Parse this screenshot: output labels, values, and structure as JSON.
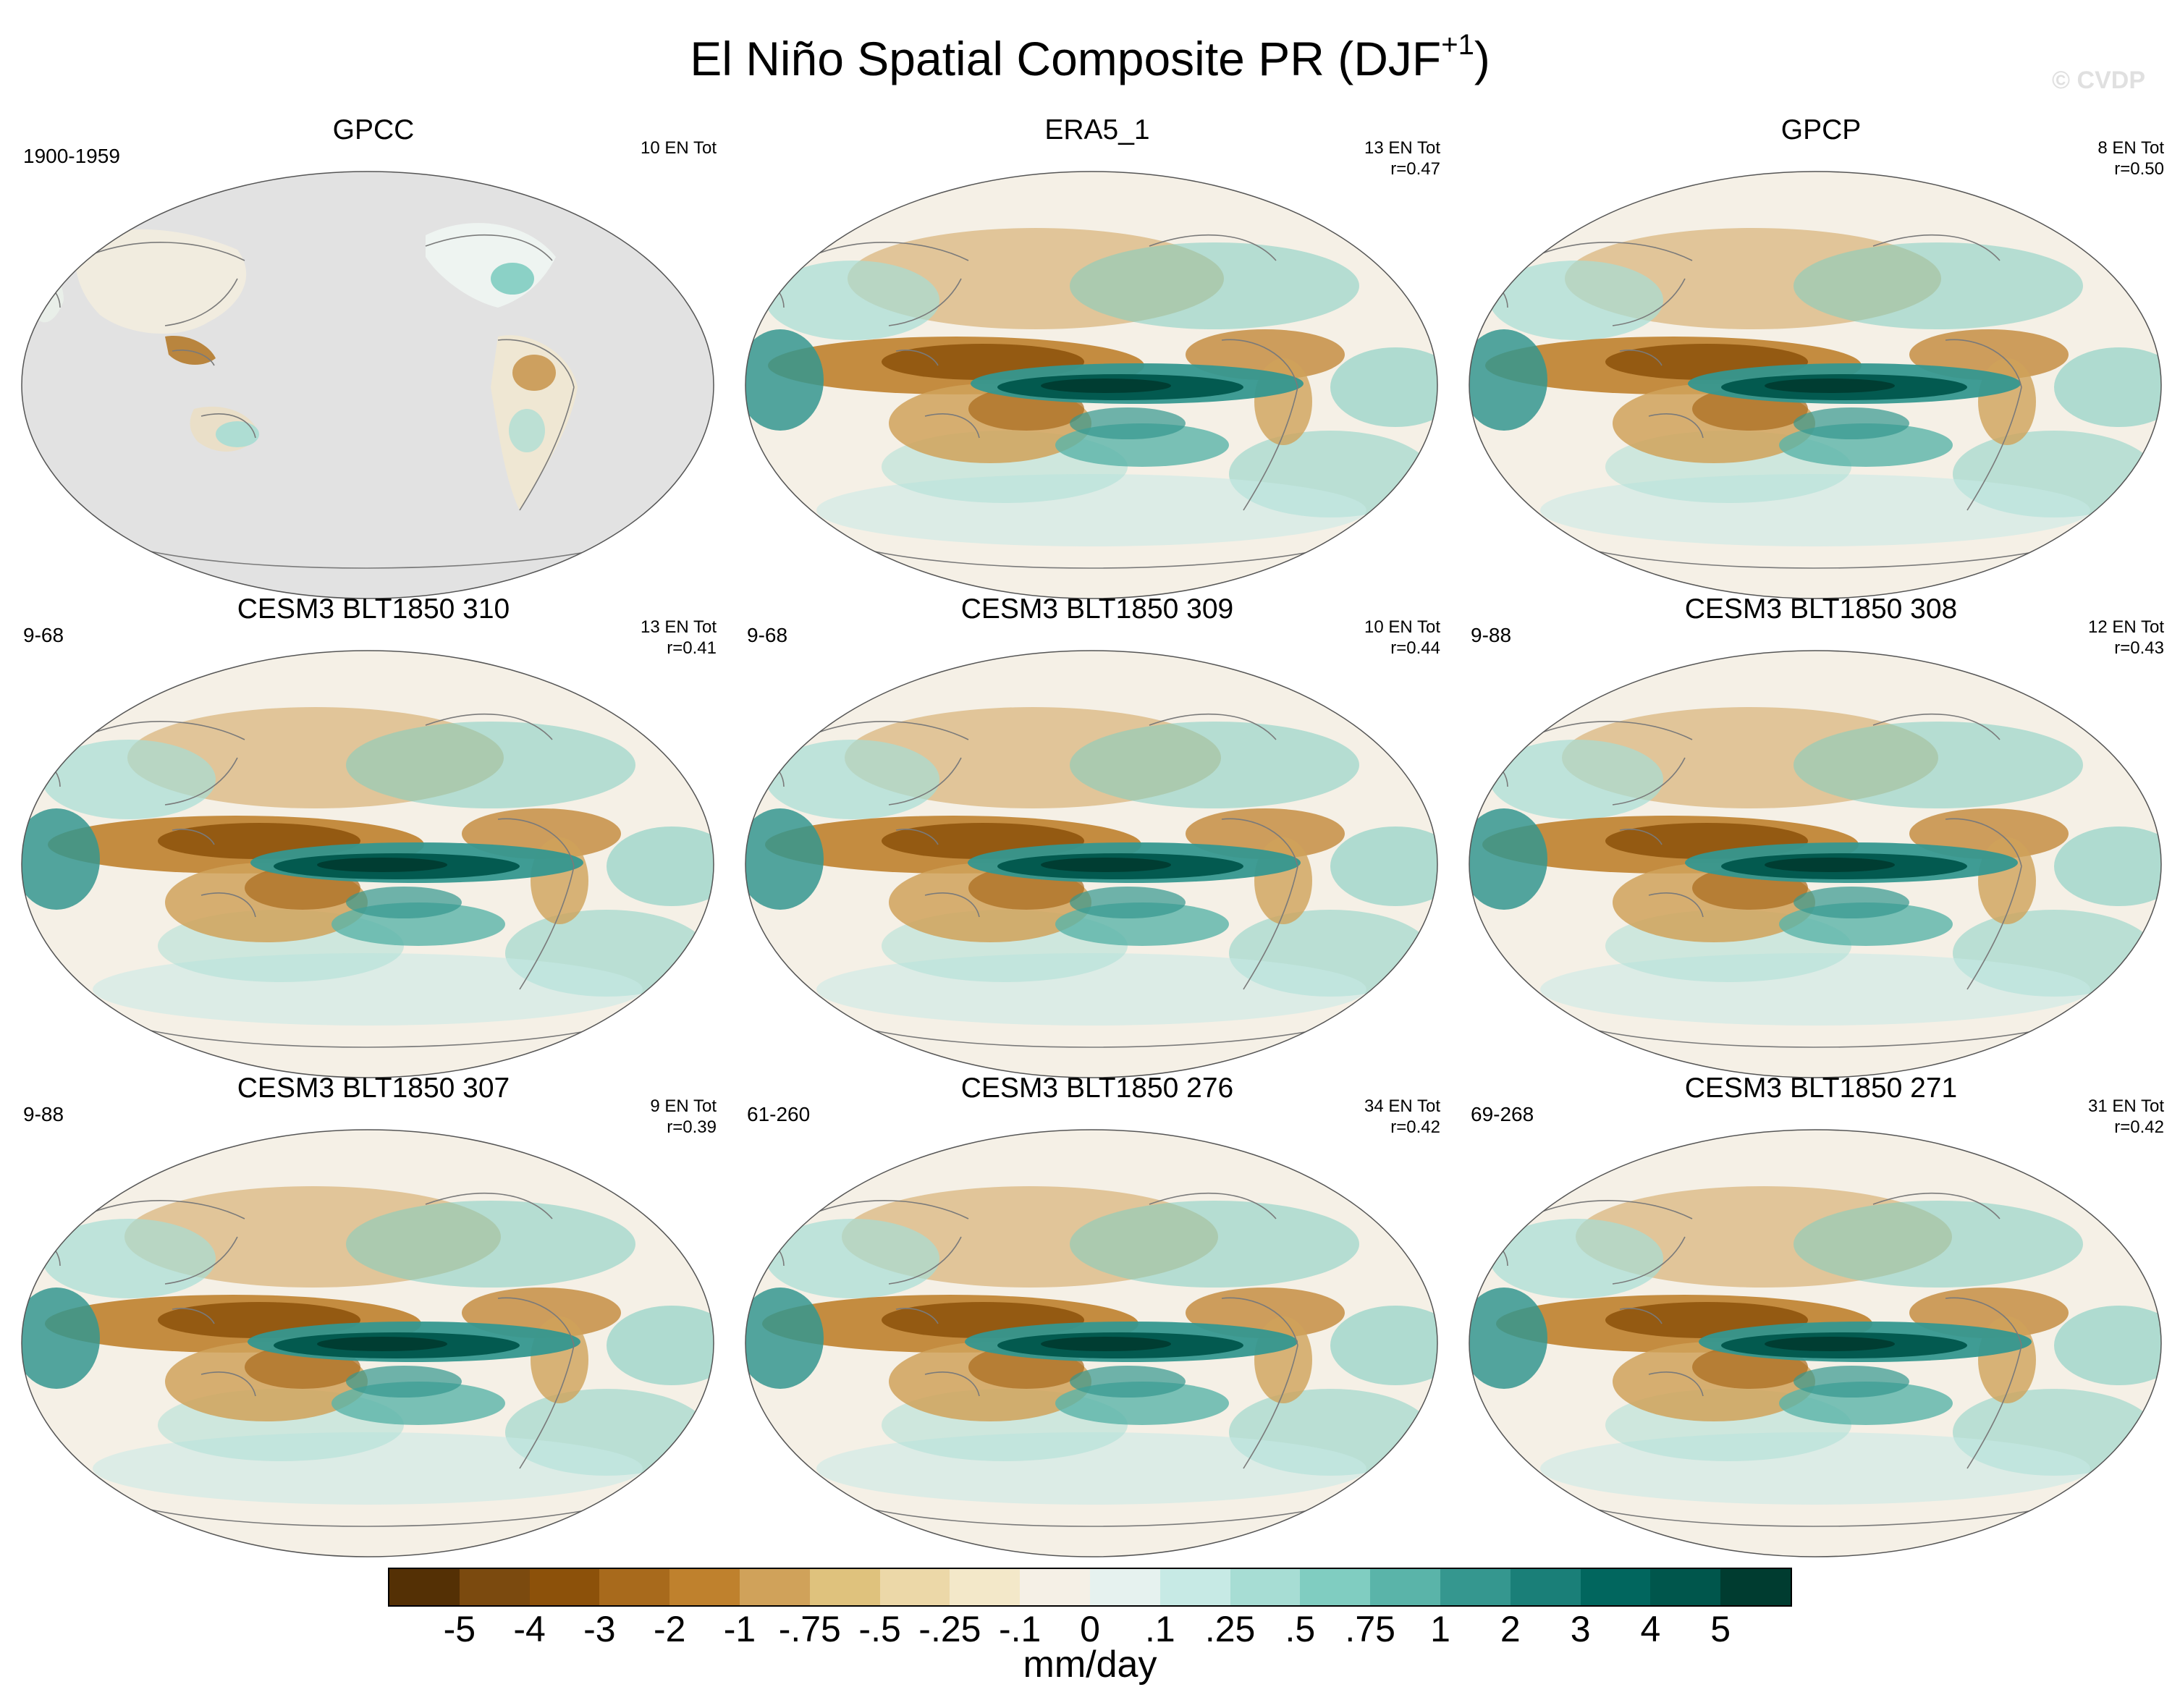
{
  "header": {
    "title": "El Niño Spatial Composite PR (DJF",
    "title_sup": "+1",
    "title_close": ")",
    "watermark": "© CVDP"
  },
  "panels": [
    {
      "title": "GPCC",
      "period": "1900-1959",
      "count": "10 EN Tot",
      "corr": "",
      "pattern": "obs-land"
    },
    {
      "title": "ERA5_1",
      "period": "",
      "count": "13 EN Tot",
      "corr": "r=0.47",
      "pattern": "full"
    },
    {
      "title": "GPCP",
      "period": "",
      "count": "8 EN Tot",
      "corr": "r=0.50",
      "pattern": "full"
    },
    {
      "title": "CESM3 BLT1850 310",
      "period": "9-68",
      "count": "13 EN Tot",
      "corr": "r=0.41",
      "pattern": "full"
    },
    {
      "title": "CESM3 BLT1850 309",
      "period": "9-68",
      "count": "10 EN Tot",
      "corr": "r=0.44",
      "pattern": "full"
    },
    {
      "title": "CESM3 BLT1850 308",
      "period": "9-88",
      "count": "12 EN Tot",
      "corr": "r=0.43",
      "pattern": "full"
    },
    {
      "title": "CESM3 BLT1850 307",
      "period": "9-88",
      "count": "9 EN Tot",
      "corr": "r=0.39",
      "pattern": "full"
    },
    {
      "title": "CESM3 BLT1850 276",
      "period": "61-260",
      "count": "34 EN Tot",
      "corr": "r=0.42",
      "pattern": "full"
    },
    {
      "title": "CESM3 BLT1850 271",
      "period": "69-268",
      "count": "31 EN Tot",
      "corr": "r=0.42",
      "pattern": "full"
    }
  ],
  "colorbar": {
    "units": "mm/day",
    "tick_labels": [
      "-5",
      "-4",
      "-3",
      "-2",
      "-1",
      "-.75",
      "-.5",
      "-.25",
      "-.1",
      "0",
      ".1",
      ".25",
      ".5",
      ".75",
      "1",
      "2",
      "3",
      "4",
      "5"
    ],
    "colors": [
      "#543005",
      "#7b4a0f",
      "#8c510a",
      "#a86a1c",
      "#bf812d",
      "#d0a25a",
      "#dfc27d",
      "#ecd8a8",
      "#f3e8c9",
      "#f5f0e6",
      "#e6f2ef",
      "#c7eae5",
      "#a7ddd4",
      "#80cdc1",
      "#5ab4a9",
      "#35978f",
      "#1a7f78",
      "#01665e",
      "#00564c",
      "#003c30"
    ]
  },
  "map_colors": {
    "background": "#f5f0e6",
    "missing": "#e2e2e2",
    "coast": "#7a7a7a",
    "outline": "#555555"
  }
}
